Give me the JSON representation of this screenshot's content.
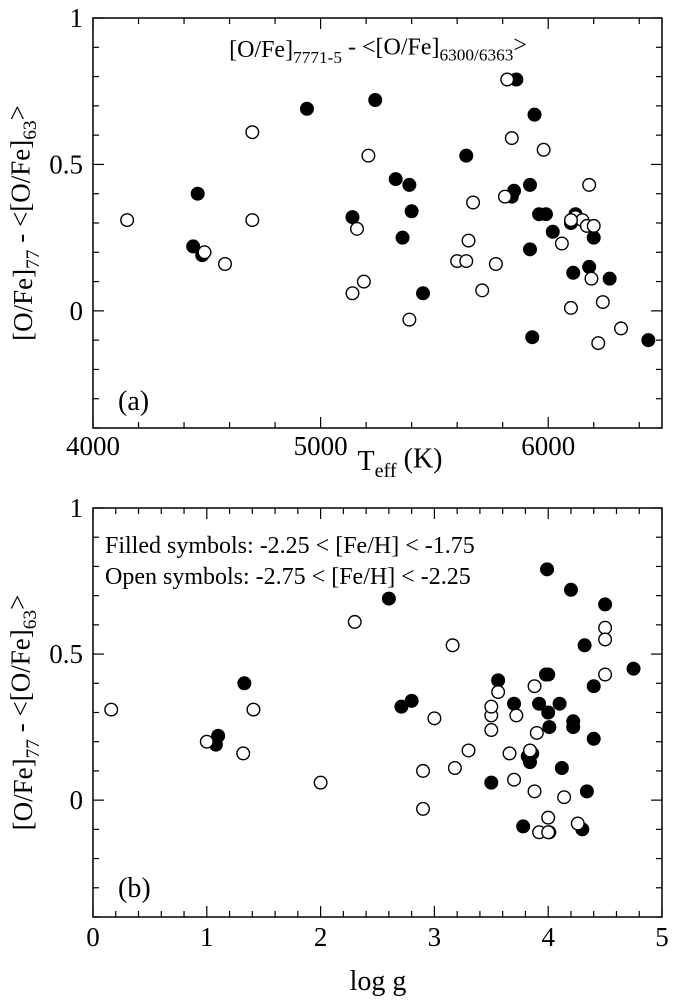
{
  "chart_data": [
    {
      "type": "scatter",
      "panel_label": "(a)",
      "annotation": {
        "parts": [
          {
            "text": "[O/Fe]",
            "role": "base"
          },
          {
            "text": "7771-5",
            "role": "sub"
          },
          {
            "text": " - <[O/Fe]",
            "role": "base"
          },
          {
            "text": "6300/6363",
            "role": "sub"
          },
          {
            "text": ">",
            "role": "base"
          }
        ]
      },
      "xlabel": {
        "parts": [
          {
            "text": "T",
            "role": "base"
          },
          {
            "text": "eff",
            "role": "sub"
          },
          {
            "text": " (K)",
            "role": "base"
          }
        ]
      },
      "ylabel": {
        "parts": [
          {
            "text": "[O/Fe]",
            "role": "base"
          },
          {
            "text": "77",
            "role": "sub"
          },
          {
            "text": " - <[O/Fe]",
            "role": "base"
          },
          {
            "text": "63",
            "role": "sub"
          },
          {
            "text": ">",
            "role": "base"
          }
        ]
      },
      "xlim": [
        4000,
        6500
      ],
      "ylim": [
        -0.4,
        1.0
      ],
      "xticks": [
        4000,
        5000,
        6000
      ],
      "yticks": [
        0,
        0.5,
        1
      ],
      "xtick_labels": [
        "4000",
        "5000",
        "6000"
      ],
      "ytick_labels": [
        "0",
        "0.5",
        "1"
      ],
      "series": [
        {
          "marker": "filled",
          "x": [
            4440,
            4460,
            4480,
            4940,
            5240,
            5140,
            5330,
            5360,
            5390,
            5400,
            5450,
            5640,
            5840,
            5850,
            5860,
            5920,
            5920,
            5930,
            5940,
            5960,
            5990,
            6020,
            6100,
            6110,
            6120,
            6180,
            6200,
            6270,
            6440
          ],
          "y": [
            0.22,
            0.4,
            0.19,
            0.69,
            0.72,
            0.32,
            0.45,
            0.25,
            0.43,
            0.34,
            0.06,
            0.53,
            0.39,
            0.41,
            0.79,
            0.21,
            0.43,
            -0.09,
            0.67,
            0.33,
            0.33,
            0.27,
            0.3,
            0.13,
            0.33,
            0.15,
            0.25,
            0.11,
            -0.1
          ]
        },
        {
          "marker": "open",
          "x": [
            4150,
            4490,
            4580,
            4700,
            4700,
            5140,
            5160,
            5190,
            5210,
            5390,
            5600,
            5640,
            5650,
            5670,
            5710,
            5770,
            5810,
            5820,
            5840,
            5980,
            6060,
            6100,
            6120,
            6150,
            6170,
            6180,
            6190,
            6200,
            6220,
            6240,
            6320,
            6100
          ],
          "y": [
            0.31,
            0.2,
            0.16,
            0.61,
            0.31,
            0.06,
            0.28,
            0.1,
            0.53,
            -0.03,
            0.17,
            0.17,
            0.24,
            0.37,
            0.07,
            0.16,
            0.39,
            0.79,
            0.59,
            0.55,
            0.23,
            0.01,
            0.32,
            0.31,
            0.29,
            0.43,
            0.11,
            0.29,
            -0.11,
            0.03,
            -0.06,
            0.31
          ]
        }
      ]
    },
    {
      "type": "scatter",
      "panel_label": "(b)",
      "annotations": [
        "Filled symbols: -2.25 < [Fe/H] < -1.75",
        "Open symbols: -2.75 < [Fe/H] < -2.25"
      ],
      "xlabel": {
        "parts": [
          {
            "text": "log g",
            "role": "base"
          }
        ]
      },
      "ylabel": {
        "parts": [
          {
            "text": "[O/Fe]",
            "role": "base"
          },
          {
            "text": "77",
            "role": "sub"
          },
          {
            "text": " - <[O/Fe]",
            "role": "base"
          },
          {
            "text": "63",
            "role": "sub"
          },
          {
            "text": ">",
            "role": "base"
          }
        ]
      },
      "xlim": [
        0,
        5
      ],
      "ylim": [
        -0.4,
        1.0
      ],
      "xticks": [
        0,
        1,
        2,
        3,
        4,
        5
      ],
      "yticks": [
        0,
        0.5,
        1
      ],
      "xtick_labels": [
        "0",
        "1",
        "2",
        "3",
        "4",
        "5"
      ],
      "ytick_labels": [
        "0",
        "0.5",
        "1"
      ],
      "series": [
        {
          "marker": "filled",
          "x": [
            1.1,
            1.08,
            1.33,
            2.6,
            2.71,
            2.8,
            3.5,
            3.56,
            3.7,
            3.78,
            3.82,
            3.84,
            3.86,
            3.92,
            3.98,
            3.99,
            4.0,
            4.0,
            4.01,
            4.01,
            4.1,
            4.12,
            4.2,
            4.22,
            4.22,
            4.3,
            4.32,
            4.34,
            4.4,
            4.4,
            4.5,
            4.75
          ],
          "y": [
            0.22,
            0.19,
            0.4,
            0.69,
            0.32,
            0.34,
            0.06,
            0.41,
            0.33,
            -0.09,
            0.15,
            0.13,
            0.16,
            0.33,
            0.43,
            0.79,
            0.43,
            0.3,
            0.25,
            -0.11,
            0.33,
            0.11,
            0.72,
            0.25,
            0.27,
            -0.1,
            0.53,
            0.03,
            0.39,
            0.21,
            0.67,
            0.45
          ]
        },
        {
          "marker": "open",
          "x": [
            0.16,
            1.0,
            1.32,
            1.41,
            2.0,
            2.3,
            2.9,
            2.9,
            3.0,
            3.16,
            3.18,
            3.3,
            3.5,
            3.5,
            3.5,
            3.56,
            3.66,
            3.7,
            3.72,
            3.84,
            3.88,
            3.88,
            3.9,
            3.92,
            4.0,
            4.0,
            4.14,
            4.26,
            4.5,
            4.5,
            4.5
          ],
          "y": [
            0.31,
            0.2,
            0.16,
            0.31,
            0.06,
            0.61,
            0.1,
            -0.03,
            0.28,
            0.53,
            0.11,
            0.17,
            0.24,
            0.29,
            0.32,
            0.37,
            0.16,
            0.07,
            0.29,
            0.17,
            0.03,
            0.39,
            0.23,
            -0.11,
            -0.06,
            -0.11,
            0.01,
            -0.08,
            0.59,
            0.55,
            0.43
          ]
        }
      ]
    }
  ]
}
